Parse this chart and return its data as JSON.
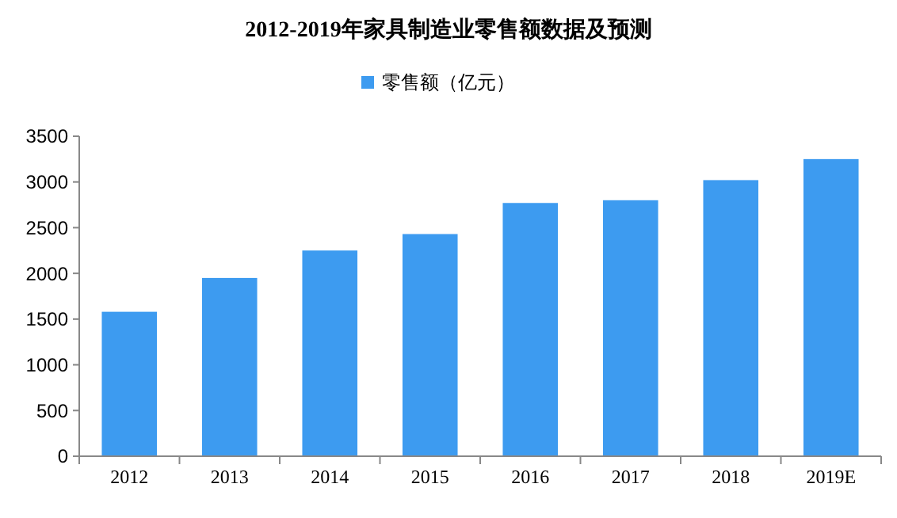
{
  "chart_data": {
    "type": "bar",
    "title": "2012-2019年家具制造业零售额数据及预测",
    "categories": [
      "2012",
      "2013",
      "2014",
      "2015",
      "2016",
      "2017",
      "2018",
      "2019E"
    ],
    "series": [
      {
        "name": "零售额（亿元）",
        "color": "#3d9bf0",
        "values": [
          1580,
          1950,
          2250,
          2430,
          2770,
          2800,
          3020,
          3250
        ]
      }
    ],
    "ylim": [
      0,
      3500
    ],
    "yticks": [
      0,
      500,
      1000,
      1500,
      2000,
      2500,
      3000,
      3500
    ],
    "grid": false,
    "legend": "top"
  }
}
